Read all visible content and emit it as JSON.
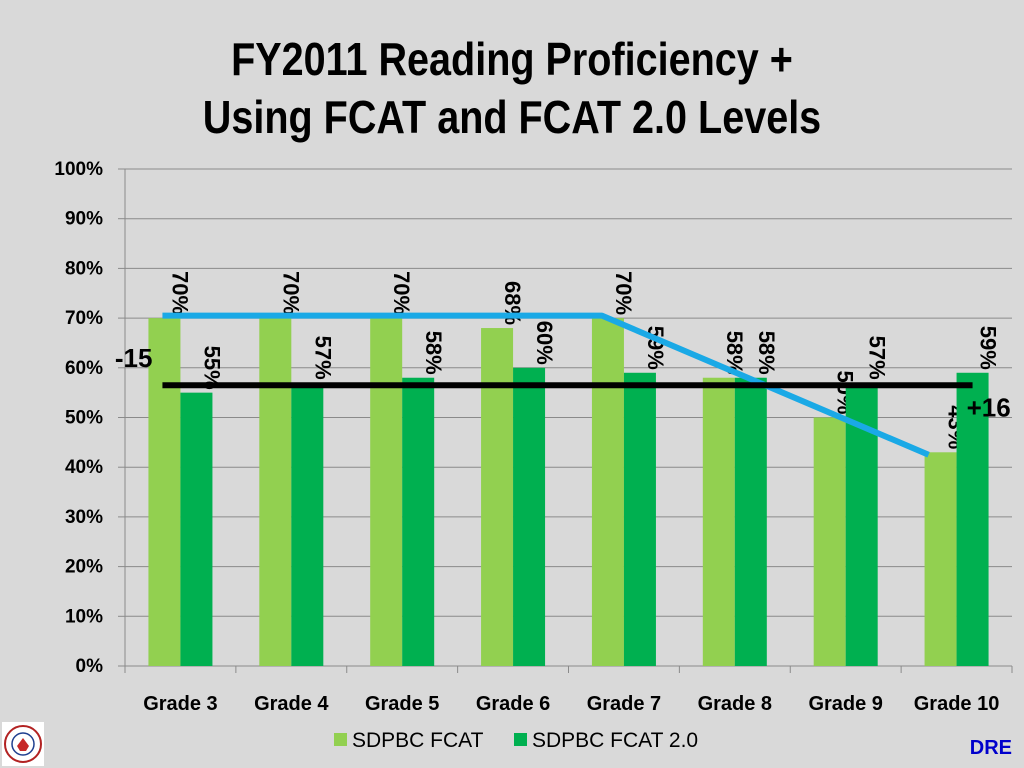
{
  "title_lines": [
    "FY2011 Reading Proficiency +",
    "Using FCAT and FCAT 2.0 Levels"
  ],
  "footer": {
    "tag": "DRE"
  },
  "logo_text": "THE SCHOOL DISTRICT OF PALM BEACH COUNTY",
  "chart_data": {
    "type": "bar",
    "title": "FY2011 Reading Proficiency + Using FCAT and FCAT 2.0 Levels",
    "categories": [
      "Grade 3",
      "Grade 4",
      "Grade 5",
      "Grade 6",
      "Grade 7",
      "Grade 8",
      "Grade 9",
      "Grade 10"
    ],
    "series": [
      {
        "name": "SDPBC FCAT",
        "color": "#92d050",
        "values": [
          70,
          70,
          70,
          68,
          70,
          58,
          50,
          43
        ],
        "labels": [
          "70%",
          "70%",
          "70%",
          "68%",
          "70%",
          "58%",
          "50%",
          "43%"
        ]
      },
      {
        "name": "SDPBC FCAT 2.0",
        "color": "#00b050",
        "values": [
          55,
          57,
          58,
          60,
          59,
          58,
          57,
          59
        ],
        "labels": [
          "55%",
          "57%",
          "58%",
          "60%",
          "59%",
          "58%",
          "57%",
          "59%"
        ]
      }
    ],
    "yticks": [
      "0%",
      "10%",
      "20%",
      "30%",
      "40%",
      "50%",
      "60%",
      "70%",
      "80%",
      "90%",
      "100%"
    ],
    "ylim": [
      0,
      100
    ],
    "grid": true,
    "legend_position": "bottom",
    "trend_lines": [
      {
        "color": "#1aa9e6",
        "points": [
          [
            0,
            70.5
          ],
          [
            4,
            70.5
          ],
          [
            7,
            42.5
          ]
        ]
      },
      {
        "color": "#000000",
        "points": [
          [
            0,
            56.5
          ],
          [
            7,
            56.5
          ]
        ]
      }
    ],
    "annotations": [
      {
        "text": "-15",
        "category": 0,
        "y": 61
      },
      {
        "text": "+16",
        "category": 7,
        "y": 51
      }
    ]
  }
}
